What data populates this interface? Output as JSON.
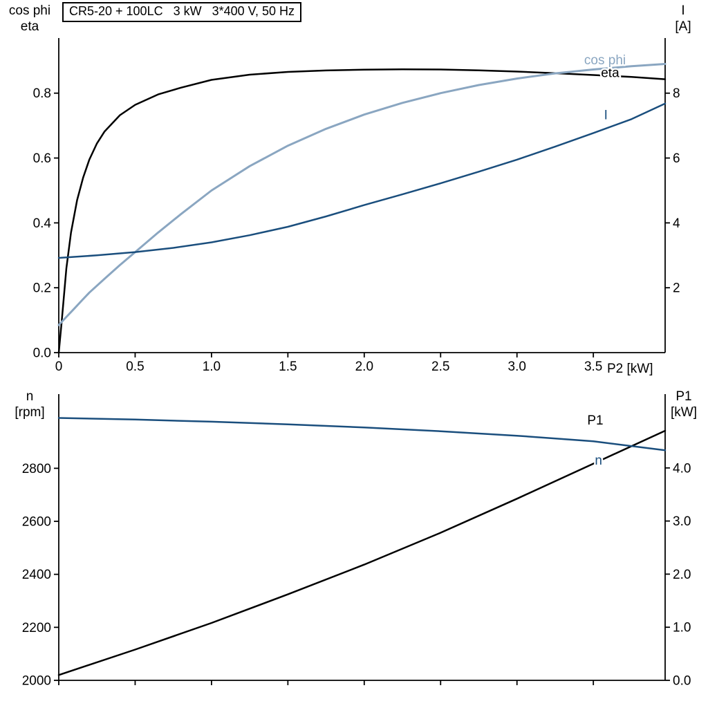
{
  "palette": {
    "black": "#000000",
    "light_blue": "#8aa6c1",
    "dark_blue": "#1a4e7d",
    "background": "#ffffff"
  },
  "chart_data": [
    {
      "type": "line",
      "title": "CR5-20 + 100LC   3 kW   3*400 V, 50 Hz",
      "x_label": "P2 [kW]",
      "x_range": [
        0,
        3.97
      ],
      "x_ticks": [
        0,
        0.5,
        1.0,
        1.5,
        2.0,
        2.5,
        3.0,
        3.5
      ],
      "x_tick_labels": [
        "0",
        "0.5",
        "1.0",
        "1.5",
        "2.0",
        "2.5",
        "3.0",
        "3.5"
      ],
      "grid": false,
      "left_axis": {
        "label_lines": [
          "cos phi",
          "eta"
        ],
        "range": [
          0,
          0.97
        ],
        "ticks": [
          0.0,
          0.2,
          0.4,
          0.6,
          0.8
        ],
        "tick_labels": [
          "0.0",
          "0.2",
          "0.4",
          "0.6",
          "0.8"
        ]
      },
      "right_axis": {
        "label_lines": [
          "I",
          "[A]"
        ],
        "range": [
          0,
          9.7
        ],
        "ticks": [
          2,
          4,
          6,
          8
        ],
        "tick_labels": [
          "2",
          "4",
          "6",
          "8"
        ]
      },
      "series": [
        {
          "name": "eta",
          "axis": "left",
          "color": "#000000",
          "width": 2.5,
          "label_at": [
            3.55,
            0.85
          ],
          "x": [
            0,
            0.02,
            0.05,
            0.08,
            0.12,
            0.16,
            0.2,
            0.25,
            0.3,
            0.4,
            0.5,
            0.65,
            0.8,
            1.0,
            1.25,
            1.5,
            1.75,
            2.0,
            2.25,
            2.5,
            2.75,
            3.0,
            3.25,
            3.5,
            3.75,
            3.97
          ],
          "y": [
            0,
            0.1,
            0.26,
            0.37,
            0.47,
            0.54,
            0.595,
            0.645,
            0.682,
            0.732,
            0.764,
            0.796,
            0.817,
            0.841,
            0.857,
            0.8655,
            0.87,
            0.8725,
            0.8735,
            0.873,
            0.8705,
            0.8665,
            0.8615,
            0.856,
            0.85,
            0.843
          ]
        },
        {
          "name": "cos phi",
          "axis": "left",
          "color": "#8aa6c1",
          "width": 3,
          "label_at": [
            3.44,
            0.889
          ],
          "x": [
            0,
            0.05,
            0.1,
            0.15,
            0.2,
            0.3,
            0.4,
            0.5,
            0.65,
            0.8,
            1.0,
            1.25,
            1.5,
            1.75,
            2.0,
            2.25,
            2.5,
            2.75,
            3.0,
            3.25,
            3.5,
            3.75,
            3.97
          ],
          "y": [
            0.085,
            0.11,
            0.135,
            0.16,
            0.185,
            0.228,
            0.27,
            0.31,
            0.37,
            0.427,
            0.5,
            0.575,
            0.638,
            0.69,
            0.734,
            0.77,
            0.8,
            0.825,
            0.845,
            0.861,
            0.873,
            0.883,
            0.89
          ]
        },
        {
          "name": "I",
          "axis": "right",
          "color": "#1a4e7d",
          "width": 2.5,
          "label_at": [
            3.57,
            7.2
          ],
          "x": [
            0,
            0.25,
            0.5,
            0.75,
            1.0,
            1.25,
            1.5,
            1.75,
            2.0,
            2.25,
            2.5,
            2.75,
            3.0,
            3.25,
            3.5,
            3.75,
            3.97
          ],
          "y": [
            2.92,
            3.0,
            3.1,
            3.23,
            3.4,
            3.62,
            3.88,
            4.2,
            4.55,
            4.88,
            5.22,
            5.58,
            5.95,
            6.35,
            6.77,
            7.2,
            7.68
          ]
        }
      ]
    },
    {
      "type": "line",
      "title": "",
      "x_label": "",
      "x_range": [
        0,
        3.97
      ],
      "x_ticks": [
        0,
        0.5,
        1.0,
        1.5,
        2.0,
        2.5,
        3.0,
        3.5
      ],
      "x_tick_labels": null,
      "grid": false,
      "left_axis": {
        "label_lines": [
          "n",
          "[rpm]"
        ],
        "range": [
          2000,
          3080
        ],
        "ticks": [
          2000,
          2200,
          2400,
          2600,
          2800
        ],
        "tick_labels": [
          "2000",
          "2200",
          "2400",
          "2600",
          "2800"
        ]
      },
      "right_axis": {
        "label_lines": [
          "P1",
          "[kW]"
        ],
        "range": [
          0,
          5.39
        ],
        "ticks": [
          0,
          1,
          2,
          3,
          4
        ],
        "tick_labels": [
          "0.0",
          "1.0",
          "2.0",
          "3.0",
          "4.0"
        ]
      },
      "series": [
        {
          "name": "P1",
          "axis": "right",
          "color": "#000000",
          "width": 2.5,
          "label_at": [
            3.46,
            4.82
          ],
          "x": [
            0,
            0.5,
            1.0,
            1.5,
            2.0,
            2.5,
            3.0,
            3.5,
            3.97
          ],
          "y": [
            0.1,
            0.58,
            1.08,
            1.62,
            2.18,
            2.78,
            3.42,
            4.08,
            4.7
          ]
        },
        {
          "name": "n",
          "axis": "left",
          "color": "#1a4e7d",
          "width": 2.5,
          "label_at": [
            3.51,
            2814
          ],
          "x": [
            0,
            0.5,
            1.0,
            1.5,
            2.0,
            2.5,
            3.0,
            3.5,
            3.97
          ],
          "y": [
            2990,
            2984,
            2976,
            2966,
            2954,
            2940,
            2923,
            2902,
            2868
          ]
        }
      ]
    }
  ]
}
